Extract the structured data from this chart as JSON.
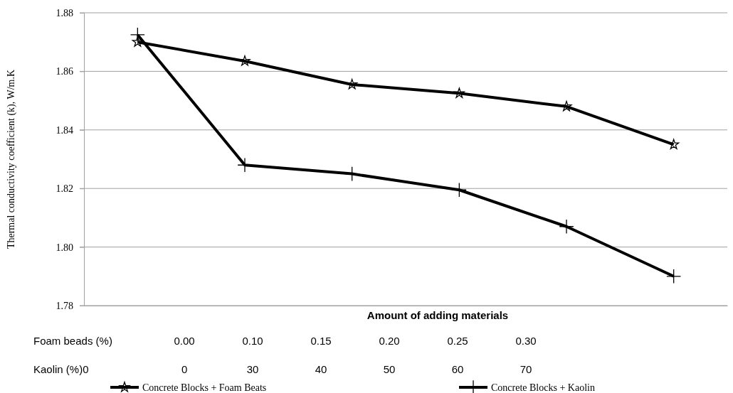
{
  "chart_data": {
    "type": "line",
    "xlabel": "Amount of adding materials",
    "ylabel": "Thermal conductivity coefficient (k), W/m.K",
    "categories": [
      null,
      null,
      null,
      null,
      null,
      null
    ],
    "series": [
      {
        "name": "Concrete Blocks + Foam Beats",
        "color": "#000000",
        "marker": "star",
        "values": [
          1.87,
          1.8635,
          1.8555,
          1.8525,
          1.848,
          1.835
        ]
      },
      {
        "name": "Concrete Blocks + Kaolin",
        "color": "#000000",
        "marker": "cross",
        "values": [
          1.8725,
          1.828,
          1.825,
          1.8195,
          1.807,
          1.79
        ]
      }
    ],
    "ylim": [
      1.78,
      1.88
    ],
    "yticks": [
      {
        "value": 1.78,
        "label": "1.78"
      },
      {
        "value": 1.8,
        "label": "1.80"
      },
      {
        "value": 1.82,
        "label": "1.82"
      },
      {
        "value": 1.84,
        "label": "1.84"
      },
      {
        "value": 1.86,
        "label": "1.86"
      },
      {
        "value": 1.88,
        "label": "1.88"
      }
    ],
    "grid": "y",
    "legend": "bottom",
    "tick_labels": "y",
    "line_style": "solid",
    "annotations": [
      "Foam beads (%)  0.00  0.10  0.15  0.20  0.25  0.30",
      "Kaolin (%)0  0  30  40  50  60  70"
    ]
  }
}
